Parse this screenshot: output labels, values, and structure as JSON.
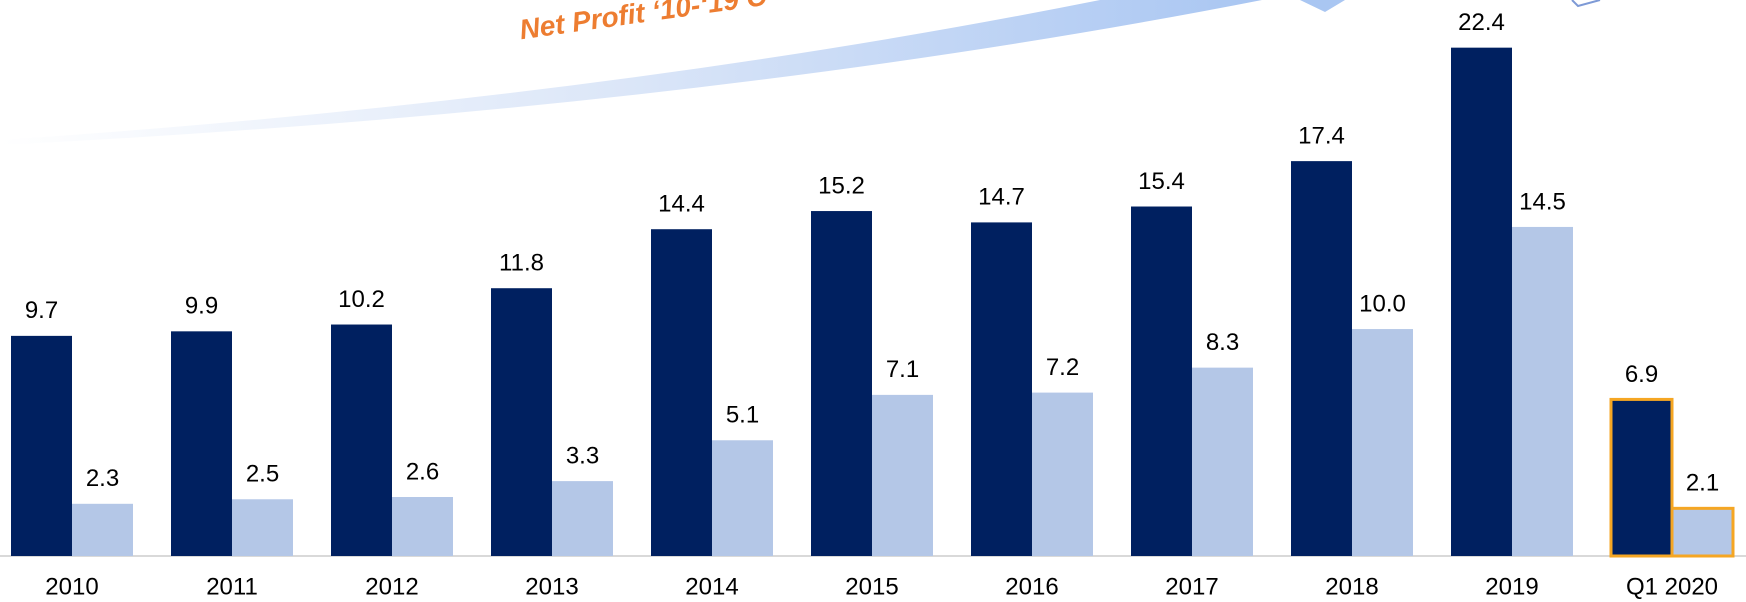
{
  "chart_data": {
    "type": "bar",
    "annotations": [
      "Net Profit ‘10-‘19 C"
    ],
    "categories": [
      "2010",
      "2011",
      "2012",
      "2013",
      "2014",
      "2015",
      "2016",
      "2017",
      "2018",
      "2019",
      "Q1 2020"
    ],
    "series": [
      {
        "color": "#002060",
        "values": [
          9.7,
          9.9,
          10.2,
          11.8,
          14.4,
          15.2,
          14.7,
          15.4,
          17.4,
          22.4,
          6.9
        ],
        "value_labels": [
          "9.7",
          "9.9",
          "10.2",
          "11.8",
          "14.4",
          "15.2",
          "14.7",
          "15.4",
          "17.4",
          "22.4",
          "6.9"
        ]
      },
      {
        "color": "#b4c7e7",
        "values": [
          2.3,
          2.5,
          2.6,
          3.3,
          5.1,
          7.1,
          7.2,
          8.3,
          10.0,
          14.5,
          2.1
        ],
        "value_labels": [
          "2.3",
          "2.5",
          "2.6",
          "3.3",
          "5.1",
          "7.1",
          "7.2",
          "8.3",
          "10.0",
          "14.5",
          "2.1"
        ]
      }
    ],
    "ylim": [
      0,
      24.5
    ],
    "highlight_color": "#f5a623"
  }
}
